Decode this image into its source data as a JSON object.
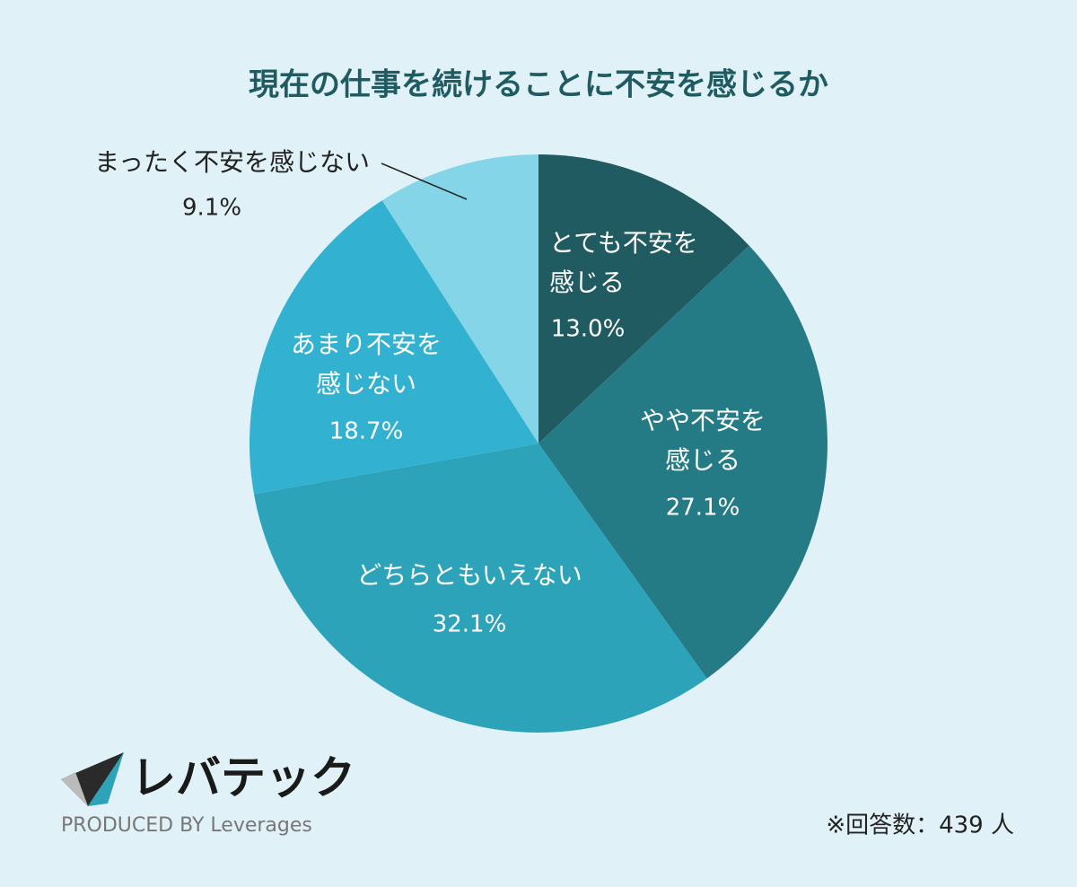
{
  "chart_data": {
    "type": "pie",
    "title": "現在の仕事を続けることに不安を感じるか",
    "categories": [
      "とても不安を\n感じる",
      "やや不安を\n感じる",
      "どちらともいえない",
      "あまり不安を\n感じない",
      "まったく不安を感じない"
    ],
    "values": [
      13.0,
      27.1,
      32.1,
      18.7,
      9.1
    ],
    "value_labels": [
      "13.0%",
      "27.1%",
      "32.1%",
      "18.7%",
      "9.1%"
    ],
    "colors": [
      "#1f5b61",
      "#247b86",
      "#2ca3b9",
      "#32b2d0",
      "#84d5e7"
    ],
    "note": "※回答数：439 人"
  },
  "brand": {
    "name": "レバテック",
    "sub": "PRODUCED BY Leverages"
  }
}
